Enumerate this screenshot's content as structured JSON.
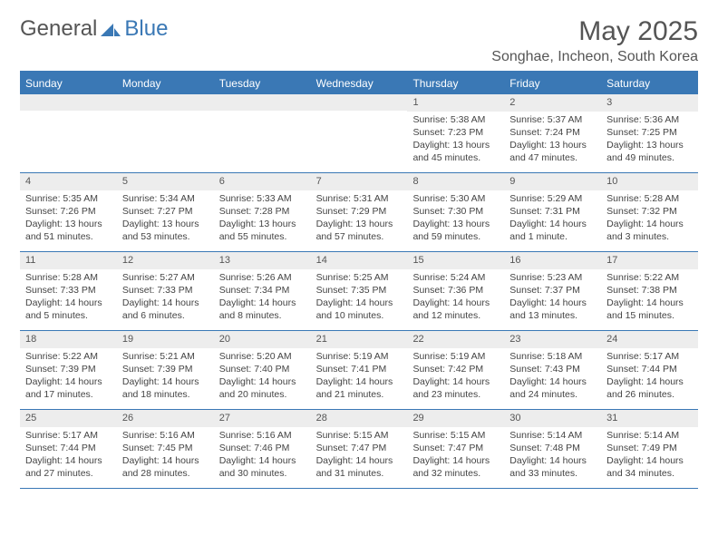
{
  "brand": {
    "part1": "General",
    "part2": "Blue"
  },
  "title": "May 2025",
  "location": "Songhae, Incheon, South Korea",
  "colors": {
    "accent": "#3a78b5",
    "header_bg": "#ededed",
    "text": "#444444",
    "title_text": "#555555",
    "white": "#ffffff"
  },
  "weekdays": [
    "Sunday",
    "Monday",
    "Tuesday",
    "Wednesday",
    "Thursday",
    "Friday",
    "Saturday"
  ],
  "weeks": [
    [
      {
        "day": "",
        "sunrise": "",
        "sunset": "",
        "daylight": ""
      },
      {
        "day": "",
        "sunrise": "",
        "sunset": "",
        "daylight": ""
      },
      {
        "day": "",
        "sunrise": "",
        "sunset": "",
        "daylight": ""
      },
      {
        "day": "",
        "sunrise": "",
        "sunset": "",
        "daylight": ""
      },
      {
        "day": "1",
        "sunrise": "Sunrise: 5:38 AM",
        "sunset": "Sunset: 7:23 PM",
        "daylight": "Daylight: 13 hours and 45 minutes."
      },
      {
        "day": "2",
        "sunrise": "Sunrise: 5:37 AM",
        "sunset": "Sunset: 7:24 PM",
        "daylight": "Daylight: 13 hours and 47 minutes."
      },
      {
        "day": "3",
        "sunrise": "Sunrise: 5:36 AM",
        "sunset": "Sunset: 7:25 PM",
        "daylight": "Daylight: 13 hours and 49 minutes."
      }
    ],
    [
      {
        "day": "4",
        "sunrise": "Sunrise: 5:35 AM",
        "sunset": "Sunset: 7:26 PM",
        "daylight": "Daylight: 13 hours and 51 minutes."
      },
      {
        "day": "5",
        "sunrise": "Sunrise: 5:34 AM",
        "sunset": "Sunset: 7:27 PM",
        "daylight": "Daylight: 13 hours and 53 minutes."
      },
      {
        "day": "6",
        "sunrise": "Sunrise: 5:33 AM",
        "sunset": "Sunset: 7:28 PM",
        "daylight": "Daylight: 13 hours and 55 minutes."
      },
      {
        "day": "7",
        "sunrise": "Sunrise: 5:31 AM",
        "sunset": "Sunset: 7:29 PM",
        "daylight": "Daylight: 13 hours and 57 minutes."
      },
      {
        "day": "8",
        "sunrise": "Sunrise: 5:30 AM",
        "sunset": "Sunset: 7:30 PM",
        "daylight": "Daylight: 13 hours and 59 minutes."
      },
      {
        "day": "9",
        "sunrise": "Sunrise: 5:29 AM",
        "sunset": "Sunset: 7:31 PM",
        "daylight": "Daylight: 14 hours and 1 minute."
      },
      {
        "day": "10",
        "sunrise": "Sunrise: 5:28 AM",
        "sunset": "Sunset: 7:32 PM",
        "daylight": "Daylight: 14 hours and 3 minutes."
      }
    ],
    [
      {
        "day": "11",
        "sunrise": "Sunrise: 5:28 AM",
        "sunset": "Sunset: 7:33 PM",
        "daylight": "Daylight: 14 hours and 5 minutes."
      },
      {
        "day": "12",
        "sunrise": "Sunrise: 5:27 AM",
        "sunset": "Sunset: 7:33 PM",
        "daylight": "Daylight: 14 hours and 6 minutes."
      },
      {
        "day": "13",
        "sunrise": "Sunrise: 5:26 AM",
        "sunset": "Sunset: 7:34 PM",
        "daylight": "Daylight: 14 hours and 8 minutes."
      },
      {
        "day": "14",
        "sunrise": "Sunrise: 5:25 AM",
        "sunset": "Sunset: 7:35 PM",
        "daylight": "Daylight: 14 hours and 10 minutes."
      },
      {
        "day": "15",
        "sunrise": "Sunrise: 5:24 AM",
        "sunset": "Sunset: 7:36 PM",
        "daylight": "Daylight: 14 hours and 12 minutes."
      },
      {
        "day": "16",
        "sunrise": "Sunrise: 5:23 AM",
        "sunset": "Sunset: 7:37 PM",
        "daylight": "Daylight: 14 hours and 13 minutes."
      },
      {
        "day": "17",
        "sunrise": "Sunrise: 5:22 AM",
        "sunset": "Sunset: 7:38 PM",
        "daylight": "Daylight: 14 hours and 15 minutes."
      }
    ],
    [
      {
        "day": "18",
        "sunrise": "Sunrise: 5:22 AM",
        "sunset": "Sunset: 7:39 PM",
        "daylight": "Daylight: 14 hours and 17 minutes."
      },
      {
        "day": "19",
        "sunrise": "Sunrise: 5:21 AM",
        "sunset": "Sunset: 7:39 PM",
        "daylight": "Daylight: 14 hours and 18 minutes."
      },
      {
        "day": "20",
        "sunrise": "Sunrise: 5:20 AM",
        "sunset": "Sunset: 7:40 PM",
        "daylight": "Daylight: 14 hours and 20 minutes."
      },
      {
        "day": "21",
        "sunrise": "Sunrise: 5:19 AM",
        "sunset": "Sunset: 7:41 PM",
        "daylight": "Daylight: 14 hours and 21 minutes."
      },
      {
        "day": "22",
        "sunrise": "Sunrise: 5:19 AM",
        "sunset": "Sunset: 7:42 PM",
        "daylight": "Daylight: 14 hours and 23 minutes."
      },
      {
        "day": "23",
        "sunrise": "Sunrise: 5:18 AM",
        "sunset": "Sunset: 7:43 PM",
        "daylight": "Daylight: 14 hours and 24 minutes."
      },
      {
        "day": "24",
        "sunrise": "Sunrise: 5:17 AM",
        "sunset": "Sunset: 7:44 PM",
        "daylight": "Daylight: 14 hours and 26 minutes."
      }
    ],
    [
      {
        "day": "25",
        "sunrise": "Sunrise: 5:17 AM",
        "sunset": "Sunset: 7:44 PM",
        "daylight": "Daylight: 14 hours and 27 minutes."
      },
      {
        "day": "26",
        "sunrise": "Sunrise: 5:16 AM",
        "sunset": "Sunset: 7:45 PM",
        "daylight": "Daylight: 14 hours and 28 minutes."
      },
      {
        "day": "27",
        "sunrise": "Sunrise: 5:16 AM",
        "sunset": "Sunset: 7:46 PM",
        "daylight": "Daylight: 14 hours and 30 minutes."
      },
      {
        "day": "28",
        "sunrise": "Sunrise: 5:15 AM",
        "sunset": "Sunset: 7:47 PM",
        "daylight": "Daylight: 14 hours and 31 minutes."
      },
      {
        "day": "29",
        "sunrise": "Sunrise: 5:15 AM",
        "sunset": "Sunset: 7:47 PM",
        "daylight": "Daylight: 14 hours and 32 minutes."
      },
      {
        "day": "30",
        "sunrise": "Sunrise: 5:14 AM",
        "sunset": "Sunset: 7:48 PM",
        "daylight": "Daylight: 14 hours and 33 minutes."
      },
      {
        "day": "31",
        "sunrise": "Sunrise: 5:14 AM",
        "sunset": "Sunset: 7:49 PM",
        "daylight": "Daylight: 14 hours and 34 minutes."
      }
    ]
  ]
}
